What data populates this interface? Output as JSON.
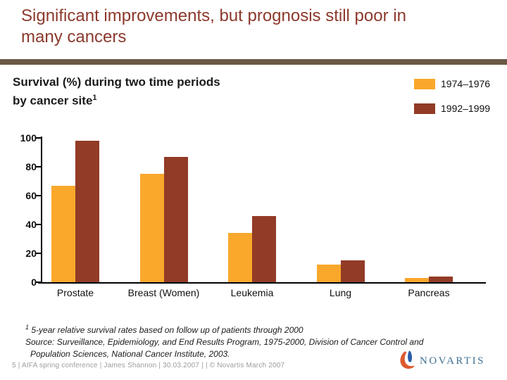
{
  "slide": {
    "title_line1": "Significant improvements, but prognosis still poor in",
    "title_line2": "many cancers",
    "footer": "5 | AIFA spring conference | James Shannon | 30.03.2007 | | © Novartis March 2007",
    "footnote": {
      "sup1": "1",
      "line1": "5-year relative survival rates based on follow up of patients through 2000",
      "line2": "Source: Surveillance, Epidemiology, and End Results Program, 1975-2000, Division of Cancer Control and",
      "line3": "Population Sciences, National Cancer Institute, 2003."
    },
    "logo": {
      "text": "NOVARTIS",
      "text_color": "#3F7191",
      "flame_orange": "#DD5A2F",
      "flame_blue": "#2A5CAA"
    },
    "colors": {
      "title": "#8C392C",
      "divider_bar": "#6B5844",
      "footer_gray": "#9C9C9C"
    }
  },
  "chart": {
    "heading_line1": "Survival (%) during two time periods",
    "heading_line2": "by cancer site",
    "heading_superscript": "1"
  },
  "chart_data": {
    "type": "bar",
    "title": "Survival (%) during two time periods by cancer site",
    "categories": [
      "Prostate",
      "Breast (Women)",
      "Leukemia",
      "Lung",
      "Pancreas"
    ],
    "series": [
      {
        "name": "1974–1976",
        "color": "#F9A82B",
        "values": [
          67,
          75,
          34,
          12,
          3
        ]
      },
      {
        "name": "1992–1999",
        "color": "#923B26",
        "values": [
          98,
          87,
          46,
          15,
          4
        ]
      }
    ],
    "ylabel": "Survival (%)",
    "ylim": [
      0,
      100
    ],
    "yticks": [
      0,
      20,
      40,
      60,
      80,
      100
    ],
    "grid": false,
    "legend_position": "top-right"
  }
}
